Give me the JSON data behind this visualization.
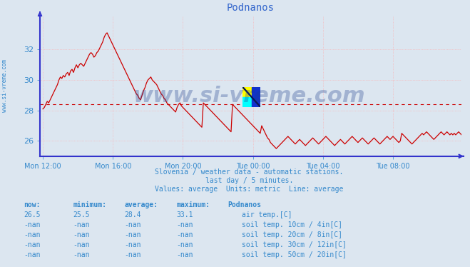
{
  "title": "Podnanos",
  "bg_color": "#dce6f0",
  "plot_bg_color": "#dce6f0",
  "axis_color": "#3333cc",
  "text_color": "#3388cc",
  "line_color": "#cc0000",
  "watermark_text": "www.si-vreme.com",
  "watermark_color": "#1a3a8a",
  "watermark_alpha": 0.3,
  "ylabel_text": "www.si-vreme.com",
  "ylim": [
    25.0,
    34.2
  ],
  "yticks": [
    26,
    28,
    30,
    32
  ],
  "average_line": 28.4,
  "xtick_labels": [
    "Mon 12:00",
    "Mon 16:00",
    "Mon 20:00",
    "Tue 00:00",
    "Tue 04:00",
    "Tue 08:00"
  ],
  "xtick_positions": [
    0,
    48,
    96,
    144,
    192,
    240
  ],
  "total_points": 288,
  "subtitle1": "Slovenia / weather data - automatic stations.",
  "subtitle2": "last day / 5 minutes.",
  "subtitle3": "Values: average  Units: metric  Line: average",
  "legend_header": "Podnanos",
  "legend_items": [
    {
      "label": "air temp.[C]",
      "color": "#cc0000"
    },
    {
      "label": "soil temp. 10cm / 4in[C]",
      "color": "#cc8800"
    },
    {
      "label": "soil temp. 20cm / 8in[C]",
      "color": "#bb7700"
    },
    {
      "label": "soil temp. 30cm / 12in[C]",
      "color": "#887755"
    },
    {
      "label": "soil temp. 50cm / 20in[C]",
      "color": "#884400"
    }
  ],
  "table_rows": [
    [
      "26.5",
      "25.5",
      "28.4",
      "33.1"
    ],
    [
      "-nan",
      "-nan",
      "-nan",
      "-nan"
    ],
    [
      "-nan",
      "-nan",
      "-nan",
      "-nan"
    ],
    [
      "-nan",
      "-nan",
      "-nan",
      "-nan"
    ],
    [
      "-nan",
      "-nan",
      "-nan",
      "-nan"
    ]
  ],
  "air_temp_data": [
    28.1,
    28.2,
    28.4,
    28.6,
    28.5,
    28.7,
    28.9,
    29.1,
    29.3,
    29.5,
    29.7,
    30.0,
    30.2,
    30.1,
    30.3,
    30.2,
    30.4,
    30.5,
    30.3,
    30.6,
    30.7,
    30.5,
    30.8,
    31.0,
    30.8,
    31.0,
    31.1,
    31.0,
    30.9,
    31.1,
    31.3,
    31.5,
    31.7,
    31.8,
    31.7,
    31.5,
    31.6,
    31.8,
    31.9,
    32.1,
    32.3,
    32.5,
    32.8,
    33.0,
    33.1,
    32.9,
    32.7,
    32.5,
    32.3,
    32.1,
    31.9,
    31.7,
    31.5,
    31.3,
    31.1,
    30.9,
    30.7,
    30.5,
    30.3,
    30.1,
    29.9,
    29.7,
    29.5,
    29.3,
    29.1,
    29.0,
    28.8,
    28.7,
    29.0,
    29.3,
    29.5,
    29.8,
    30.0,
    30.1,
    30.2,
    30.0,
    29.9,
    29.8,
    29.7,
    29.5,
    29.3,
    29.1,
    29.0,
    28.8,
    28.7,
    28.5,
    28.4,
    28.3,
    28.2,
    28.1,
    28.0,
    27.9,
    28.2,
    28.4,
    28.5,
    28.3,
    28.2,
    28.1,
    28.0,
    27.9,
    27.8,
    27.7,
    27.6,
    27.5,
    27.4,
    27.3,
    27.2,
    27.1,
    27.0,
    26.9,
    28.5,
    28.4,
    28.3,
    28.2,
    28.1,
    28.0,
    27.9,
    27.8,
    27.7,
    27.6,
    27.5,
    27.4,
    27.3,
    27.2,
    27.1,
    27.0,
    26.9,
    26.8,
    26.7,
    26.6,
    28.4,
    28.3,
    28.2,
    28.1,
    28.0,
    27.9,
    27.8,
    27.7,
    27.6,
    27.5,
    27.4,
    27.3,
    27.2,
    27.1,
    27.0,
    26.9,
    26.8,
    26.7,
    26.6,
    26.5,
    27.0,
    26.8,
    26.6,
    26.4,
    26.2,
    26.1,
    25.9,
    25.8,
    25.7,
    25.6,
    25.5,
    25.6,
    25.7,
    25.8,
    25.9,
    26.0,
    26.1,
    26.2,
    26.3,
    26.2,
    26.1,
    26.0,
    25.9,
    25.8,
    25.9,
    26.0,
    26.1,
    26.0,
    25.9,
    25.8,
    25.7,
    25.8,
    25.9,
    26.0,
    26.1,
    26.2,
    26.1,
    26.0,
    25.9,
    25.8,
    25.9,
    26.0,
    26.1,
    26.2,
    26.3,
    26.2,
    26.1,
    26.0,
    25.9,
    25.8,
    25.7,
    25.8,
    25.9,
    26.0,
    26.1,
    26.0,
    25.9,
    25.8,
    25.9,
    26.0,
    26.1,
    26.2,
    26.3,
    26.2,
    26.1,
    26.0,
    25.9,
    26.0,
    26.1,
    26.2,
    26.1,
    26.0,
    25.9,
    25.8,
    25.9,
    26.0,
    26.1,
    26.2,
    26.1,
    26.0,
    25.9,
    25.8,
    25.9,
    26.0,
    26.1,
    26.2,
    26.3,
    26.2,
    26.1,
    26.2,
    26.3,
    26.2,
    26.1,
    26.0,
    25.9,
    26.0,
    26.5,
    26.4,
    26.3,
    26.2,
    26.1,
    26.0,
    25.9,
    25.8,
    25.9,
    26.0,
    26.1,
    26.2,
    26.3,
    26.4,
    26.5,
    26.4,
    26.5,
    26.6,
    26.5,
    26.4,
    26.3,
    26.2,
    26.1,
    26.2,
    26.3,
    26.4,
    26.5,
    26.6,
    26.5,
    26.4,
    26.5,
    26.6,
    26.5,
    26.4,
    26.5,
    26.4,
    26.5,
    26.4,
    26.5,
    26.6,
    26.5,
    26.4
  ]
}
